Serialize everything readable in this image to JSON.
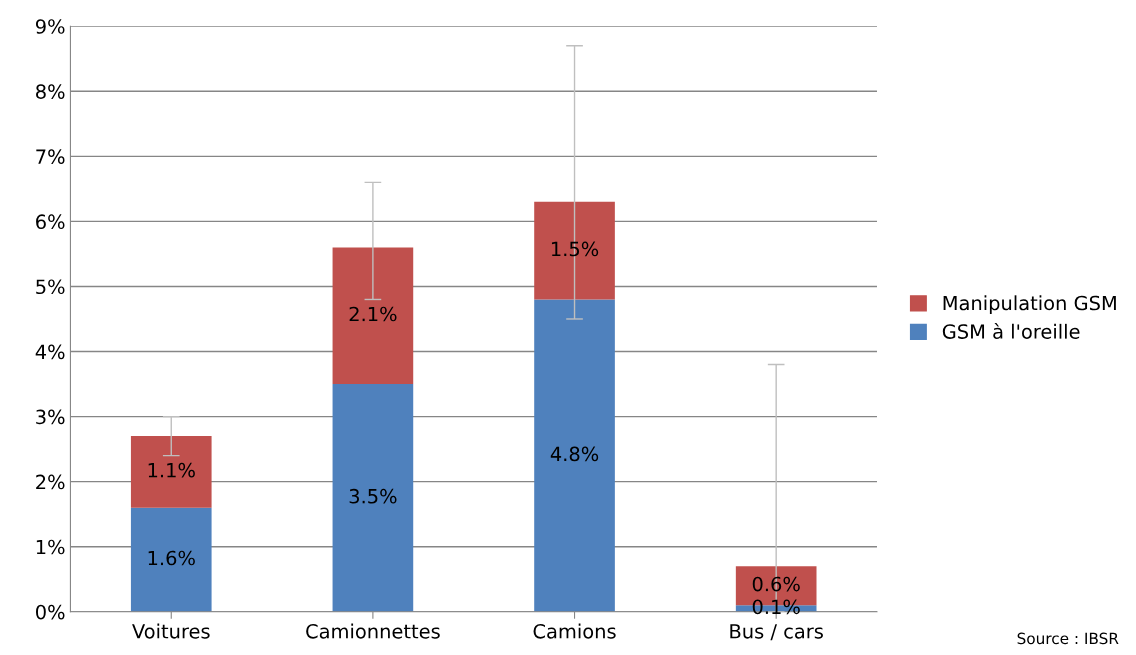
{
  "chart_data": {
    "type": "bar",
    "stacked": true,
    "categories": [
      "Voitures",
      "Camionnettes",
      "Camions",
      "Bus / cars"
    ],
    "series": [
      {
        "name": "GSM à l'oreille",
        "color": "#4f81bd",
        "values": [
          1.6,
          3.5,
          4.8,
          0.1
        ],
        "value_labels": [
          "1.6%",
          "3.5%",
          "4.8%",
          "0.1%"
        ]
      },
      {
        "name": "Manipulation GSM",
        "color": "#c0504d",
        "values": [
          1.1,
          2.1,
          1.5,
          0.6
        ],
        "value_labels": [
          "1.1%",
          "2.1%",
          "1.5%",
          "0.6%"
        ],
        "errors": [
          [
            2.4,
            3.0
          ],
          [
            4.8,
            6.6
          ],
          [
            4.5,
            8.7
          ],
          [
            0,
            3.8
          ]
        ]
      }
    ],
    "ylim": [
      0,
      9
    ],
    "yticks": [
      {
        "value": 0,
        "label": "0%"
      },
      {
        "value": 1,
        "label": "1%"
      },
      {
        "value": 2,
        "label": "2%"
      },
      {
        "value": 3,
        "label": "3%"
      },
      {
        "value": 4,
        "label": "4%"
      },
      {
        "value": 5,
        "label": "5%"
      },
      {
        "value": 6,
        "label": "6%"
      },
      {
        "value": 7,
        "label": "7%"
      },
      {
        "value": 8,
        "label": "8%"
      },
      {
        "value": 9,
        "label": "9%"
      }
    ],
    "grid": "y",
    "legend": "right",
    "annotations": [
      "Source : IBSR"
    ]
  }
}
